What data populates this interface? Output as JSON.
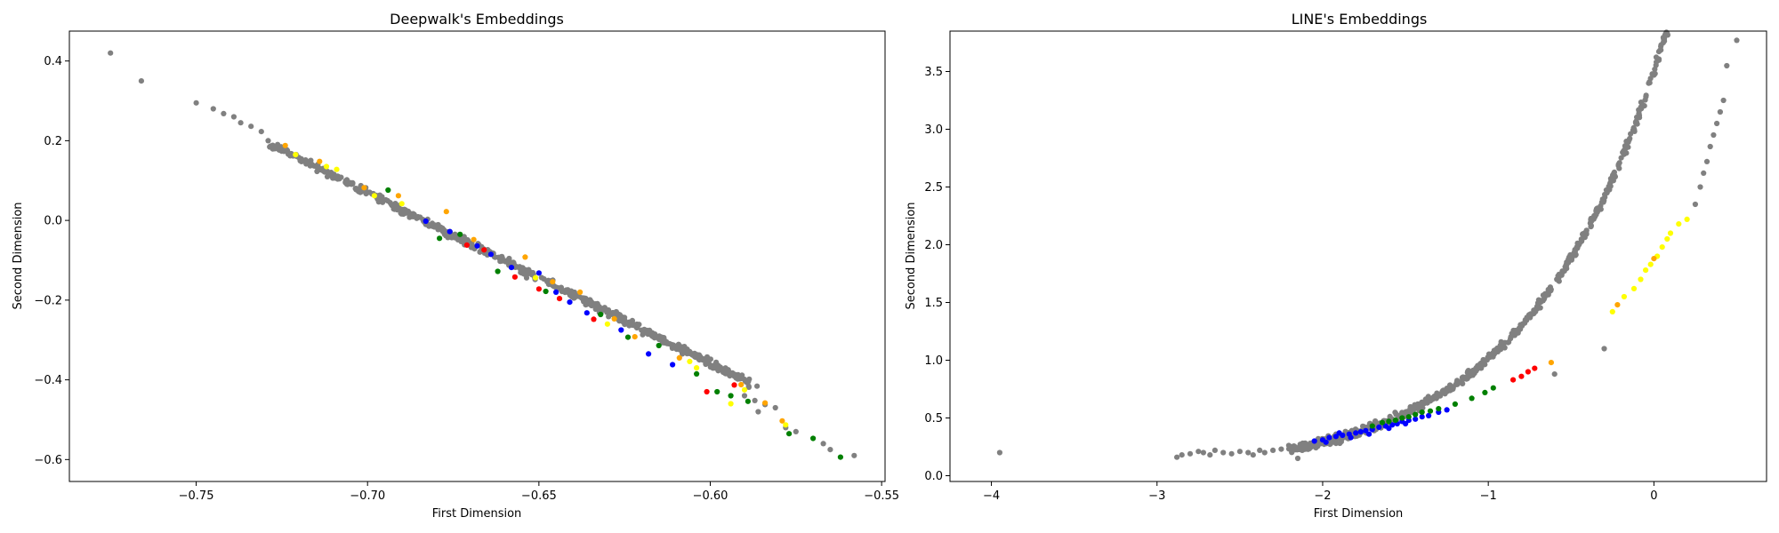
{
  "chart_data": [
    {
      "type": "scatter",
      "title": "Deepwalk's Embeddings",
      "xlabel": "First Dimension",
      "ylabel": "Second Dimension",
      "xlim": [
        -0.787,
        -0.549
      ],
      "ylim": [
        -0.655,
        0.475
      ],
      "xticks": [
        -0.75,
        -0.7,
        -0.65,
        -0.6,
        -0.55
      ],
      "xticklabels": [
        "−0.75",
        "−0.70",
        "−0.65",
        "−0.60",
        "−0.55"
      ],
      "yticks": [
        -0.6,
        -0.4,
        -0.2,
        0.0,
        0.2,
        0.4
      ],
      "yticklabels": [
        "−0.6",
        "−0.4",
        "−0.2",
        "0.0",
        "0.2",
        "0.4"
      ],
      "grid": false,
      "marker_color": "#808080",
      "curve": {
        "x_start": -0.728,
        "x_end": -0.588,
        "y_start": 0.19,
        "y_end": -0.41,
        "points": 620,
        "spread": 0.012
      },
      "series": [
        {
          "color": "#808080",
          "points": [
            [
              -0.775,
              0.42
            ],
            [
              -0.766,
              0.35
            ],
            [
              -0.75,
              0.295
            ],
            [
              -0.745,
              0.28
            ],
            [
              -0.742,
              0.268
            ],
            [
              -0.739,
              0.26
            ],
            [
              -0.737,
              0.245
            ],
            [
              -0.734,
              0.236
            ],
            [
              -0.731,
              0.223
            ],
            [
              -0.729,
              0.2
            ],
            [
              -0.59,
              -0.44
            ],
            [
              -0.587,
              -0.452
            ],
            [
              -0.584,
              -0.462
            ],
            [
              -0.581,
              -0.47
            ],
            [
              -0.586,
              -0.48
            ],
            [
              -0.578,
              -0.52
            ],
            [
              -0.575,
              -0.53
            ],
            [
              -0.567,
              -0.56
            ],
            [
              -0.565,
              -0.575
            ],
            [
              -0.558,
              -0.59
            ]
          ]
        },
        {
          "color": "#0000ff",
          "points": [
            [
              -0.683,
              -0.002
            ],
            [
              -0.676,
              -0.028
            ],
            [
              -0.668,
              -0.064
            ],
            [
              -0.664,
              -0.085
            ],
            [
              -0.658,
              -0.118
            ],
            [
              -0.65,
              -0.132
            ],
            [
              -0.645,
              -0.18
            ],
            [
              -0.641,
              -0.205
            ],
            [
              -0.636,
              -0.232
            ],
            [
              -0.626,
              -0.275
            ],
            [
              -0.618,
              -0.335
            ],
            [
              -0.611,
              -0.362
            ]
          ]
        },
        {
          "color": "#ff0000",
          "points": [
            [
              -0.671,
              -0.062
            ],
            [
              -0.666,
              -0.074
            ],
            [
              -0.657,
              -0.142
            ],
            [
              -0.65,
              -0.172
            ],
            [
              -0.644,
              -0.196
            ],
            [
              -0.634,
              -0.248
            ],
            [
              -0.601,
              -0.43
            ],
            [
              -0.593,
              -0.413
            ]
          ]
        },
        {
          "color": "#008000",
          "points": [
            [
              -0.694,
              0.076
            ],
            [
              -0.679,
              -0.045
            ],
            [
              -0.673,
              -0.035
            ],
            [
              -0.662,
              -0.128
            ],
            [
              -0.648,
              -0.178
            ],
            [
              -0.632,
              -0.236
            ],
            [
              -0.624,
              -0.293
            ],
            [
              -0.615,
              -0.314
            ],
            [
              -0.604,
              -0.385
            ],
            [
              -0.598,
              -0.43
            ],
            [
              -0.594,
              -0.44
            ],
            [
              -0.589,
              -0.454
            ],
            [
              -0.577,
              -0.535
            ],
            [
              -0.57,
              -0.547
            ],
            [
              -0.562,
              -0.594
            ]
          ]
        },
        {
          "color": "#ffa500",
          "points": [
            [
              -0.724,
              0.188
            ],
            [
              -0.714,
              0.148
            ],
            [
              -0.701,
              0.082
            ],
            [
              -0.691,
              0.062
            ],
            [
              -0.677,
              0.022
            ],
            [
              -0.669,
              -0.048
            ],
            [
              -0.654,
              -0.092
            ],
            [
              -0.646,
              -0.154
            ],
            [
              -0.638,
              -0.18
            ],
            [
              -0.628,
              -0.247
            ],
            [
              -0.622,
              -0.292
            ],
            [
              -0.609,
              -0.345
            ],
            [
              -0.591,
              -0.412
            ],
            [
              -0.584,
              -0.458
            ],
            [
              -0.579,
              -0.503
            ]
          ]
        },
        {
          "color": "#ffff00",
          "points": [
            [
              -0.721,
              0.165
            ],
            [
              -0.712,
              0.135
            ],
            [
              -0.709,
              0.128
            ],
            [
              -0.698,
              0.062
            ],
            [
              -0.69,
              0.042
            ],
            [
              -0.651,
              -0.144
            ],
            [
              -0.63,
              -0.26
            ],
            [
              -0.606,
              -0.354
            ],
            [
              -0.604,
              -0.37
            ],
            [
              -0.59,
              -0.425
            ],
            [
              -0.594,
              -0.46
            ],
            [
              -0.578,
              -0.513
            ]
          ]
        }
      ]
    },
    {
      "type": "scatter",
      "title": "LINE's Embeddings",
      "xlabel": "First Dimension",
      "ylabel": "Second Dimension",
      "xlim": [
        -4.25,
        0.68
      ],
      "ylim": [
        -0.05,
        3.85
      ],
      "xticks": [
        -4,
        -3,
        -2,
        -1,
        0
      ],
      "xticklabels": [
        "−4",
        "−3",
        "−2",
        "−1",
        "0"
      ],
      "yticks": [
        0.0,
        0.5,
        1.0,
        1.5,
        2.0,
        2.5,
        3.0,
        3.5
      ],
      "yticklabels": [
        "0.0",
        "0.5",
        "1.0",
        "1.5",
        "2.0",
        "2.5",
        "3.0",
        "3.5"
      ],
      "grid": false,
      "marker_color": "#808080",
      "curve": {
        "x_start": -2.2,
        "x_end": 0.25,
        "y_scale": 0.2,
        "y_rate": 2.2,
        "y_offset": -2.9,
        "points": 700,
        "spread": 0.02
      },
      "series": [
        {
          "color": "#808080",
          "points": [
            [
              -3.95,
              0.2
            ],
            [
              -2.88,
              0.16
            ],
            [
              -2.85,
              0.18
            ],
            [
              -2.8,
              0.19
            ],
            [
              -2.75,
              0.21
            ],
            [
              -2.72,
              0.2
            ],
            [
              -2.68,
              0.18
            ],
            [
              -2.65,
              0.22
            ],
            [
              -2.6,
              0.2
            ],
            [
              -2.55,
              0.19
            ],
            [
              -2.5,
              0.21
            ],
            [
              -2.45,
              0.2
            ],
            [
              -2.42,
              0.18
            ],
            [
              -2.38,
              0.22
            ],
            [
              -2.35,
              0.2
            ],
            [
              -2.3,
              0.22
            ],
            [
              -2.25,
              0.23
            ],
            [
              -2.15,
              0.15
            ],
            [
              0.25,
              2.35
            ],
            [
              0.28,
              2.5
            ],
            [
              0.3,
              2.62
            ],
            [
              0.32,
              2.72
            ],
            [
              0.34,
              2.85
            ],
            [
              0.36,
              2.95
            ],
            [
              0.38,
              3.05
            ],
            [
              0.4,
              3.15
            ],
            [
              0.42,
              3.25
            ],
            [
              0.44,
              3.55
            ],
            [
              0.5,
              3.77
            ],
            [
              -0.6,
              0.88
            ],
            [
              -0.3,
              1.1
            ]
          ]
        },
        {
          "color": "#0000ff",
          "points": [
            [
              -2.05,
              0.3
            ],
            [
              -2.0,
              0.31
            ],
            [
              -1.96,
              0.33
            ],
            [
              -1.92,
              0.34
            ],
            [
              -1.88,
              0.35
            ],
            [
              -1.84,
              0.36
            ],
            [
              -1.8,
              0.37
            ],
            [
              -1.77,
              0.38
            ],
            [
              -1.74,
              0.39
            ],
            [
              -1.7,
              0.4
            ],
            [
              -1.66,
              0.42
            ],
            [
              -1.62,
              0.43
            ],
            [
              -1.58,
              0.44
            ],
            [
              -1.55,
              0.45
            ],
            [
              -1.52,
              0.47
            ],
            [
              -1.48,
              0.48
            ],
            [
              -1.44,
              0.49
            ],
            [
              -1.4,
              0.51
            ],
            [
              -1.36,
              0.52
            ],
            [
              -1.3,
              0.55
            ],
            [
              -1.25,
              0.57
            ],
            [
              -1.98,
              0.29
            ],
            [
              -1.9,
              0.37
            ],
            [
              -1.83,
              0.33
            ],
            [
              -1.72,
              0.36
            ],
            [
              -1.6,
              0.41
            ],
            [
              -1.5,
              0.45
            ]
          ]
        },
        {
          "color": "#008000",
          "points": [
            [
              -1.64,
              0.46
            ],
            [
              -1.6,
              0.47
            ],
            [
              -1.56,
              0.48
            ],
            [
              -1.52,
              0.5
            ],
            [
              -1.48,
              0.51
            ],
            [
              -1.44,
              0.53
            ],
            [
              -1.4,
              0.55
            ],
            [
              -1.35,
              0.56
            ],
            [
              -1.3,
              0.58
            ],
            [
              -1.2,
              0.62
            ],
            [
              -1.1,
              0.67
            ],
            [
              -1.02,
              0.72
            ],
            [
              -0.97,
              0.76
            ],
            [
              -1.7,
              0.43
            ]
          ]
        },
        {
          "color": "#ff0000",
          "points": [
            [
              -0.85,
              0.83
            ],
            [
              -0.8,
              0.86
            ],
            [
              -0.76,
              0.9
            ],
            [
              -0.72,
              0.93
            ]
          ]
        },
        {
          "color": "#ffff00",
          "points": [
            [
              -0.25,
              1.42
            ],
            [
              -0.18,
              1.55
            ],
            [
              -0.12,
              1.62
            ],
            [
              -0.08,
              1.7
            ],
            [
              -0.05,
              1.78
            ],
            [
              -0.02,
              1.83
            ],
            [
              0.02,
              1.9
            ],
            [
              0.05,
              1.98
            ],
            [
              0.08,
              2.05
            ],
            [
              0.1,
              2.1
            ],
            [
              0.15,
              2.18
            ],
            [
              0.2,
              2.22
            ]
          ]
        },
        {
          "color": "#ffa500",
          "points": [
            [
              -0.22,
              1.48
            ],
            [
              -0.62,
              0.98
            ],
            [
              0.0,
              1.88
            ]
          ]
        }
      ]
    }
  ]
}
